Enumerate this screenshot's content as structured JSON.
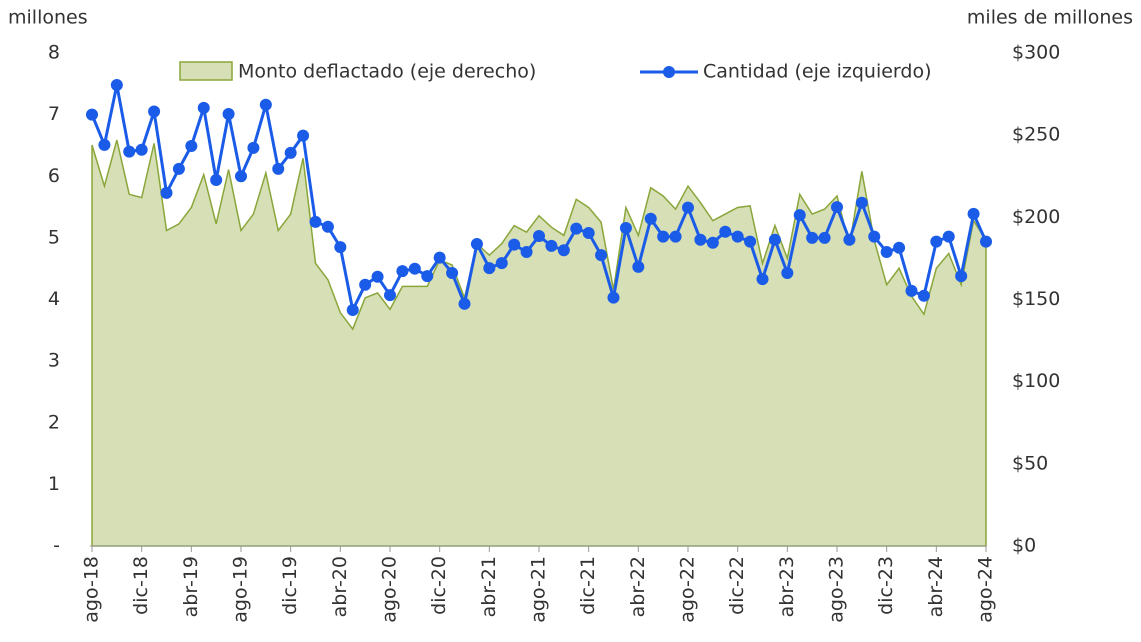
{
  "chart_data": {
    "type": "line",
    "left_axis_label": "millones",
    "right_axis_label": "miles de millones",
    "categories": [
      "ago-18",
      null,
      null,
      null,
      "dic-18",
      null,
      null,
      null,
      "abr-19",
      null,
      null,
      null,
      "ago-19",
      null,
      null,
      null,
      "dic-19",
      null,
      null,
      null,
      "abr-20",
      null,
      null,
      null,
      "ago-20",
      null,
      null,
      null,
      "dic-20",
      null,
      null,
      null,
      "abr-21",
      null,
      null,
      null,
      "ago-21",
      null,
      null,
      null,
      "dic-21",
      null,
      null,
      null,
      "abr-22",
      null,
      null,
      null,
      "ago-22",
      null,
      null,
      null,
      "dic-22",
      null,
      null,
      null,
      "abr-23",
      null,
      null,
      null,
      "ago-23",
      null,
      null,
      null,
      "dic-23",
      null,
      null,
      null,
      "abr-24",
      null,
      null,
      null,
      "ago-24"
    ],
    "series": [
      {
        "name": "Monto deflactado (eje derecho)",
        "type": "area",
        "axis": "y2",
        "color": "#8aa63a",
        "fill": "#d6dfb6",
        "values": [
          244,
          219,
          247,
          214,
          212,
          245,
          192,
          196,
          206,
          226,
          196,
          229,
          192,
          202,
          227,
          192,
          202,
          236,
          172,
          162,
          142,
          132,
          151,
          154,
          144,
          158,
          158,
          158,
          174,
          171,
          151,
          184,
          177,
          184,
          195,
          191,
          201,
          194,
          189,
          211,
          206,
          197,
          156,
          206,
          189,
          218,
          213,
          205,
          219,
          209,
          198,
          202,
          206,
          207,
          172,
          195,
          175,
          214,
          202,
          205,
          213,
          183,
          228,
          186,
          159,
          169,
          152,
          141,
          169,
          178,
          159,
          198,
          186
        ]
      },
      {
        "name": "Cantidad (eje izquierdo)",
        "type": "line",
        "axis": "y",
        "color": "#1a5ce8",
        "values": [
          7.0,
          6.51,
          7.48,
          6.4,
          6.43,
          7.05,
          5.73,
          6.12,
          6.49,
          7.11,
          5.94,
          7.01,
          6.0,
          6.46,
          7.16,
          6.12,
          6.38,
          6.66,
          5.26,
          5.18,
          4.85,
          3.83,
          4.24,
          4.37,
          4.07,
          4.46,
          4.5,
          4.38,
          4.68,
          4.43,
          3.93,
          4.9,
          4.51,
          4.59,
          4.89,
          4.77,
          5.03,
          4.87,
          4.8,
          5.15,
          5.08,
          4.72,
          4.03,
          5.16,
          4.53,
          5.31,
          5.02,
          5.02,
          5.49,
          4.97,
          4.92,
          5.1,
          5.02,
          4.94,
          4.33,
          4.97,
          4.43,
          5.37,
          5.0,
          5.0,
          5.5,
          4.97,
          5.57,
          5.02,
          4.77,
          4.84,
          4.14,
          4.06,
          4.94,
          5.02,
          4.38,
          5.39,
          4.94
        ]
      }
    ],
    "ylim": [
      0,
      8
    ],
    "yticks": [
      {
        "value": 0,
        "label": "-"
      },
      1,
      2,
      3,
      4,
      5,
      6,
      7,
      8
    ],
    "y2lim": [
      0,
      300
    ],
    "y2ticks": [
      {
        "value": 0,
        "label": "$0"
      },
      {
        "value": 50,
        "label": "$50"
      },
      {
        "value": 100,
        "label": "$100"
      },
      {
        "value": 150,
        "label": "$150"
      },
      {
        "value": 200,
        "label": "$200"
      },
      {
        "value": 250,
        "label": "$250"
      },
      {
        "value": 300,
        "label": "$300"
      }
    ],
    "grid": false,
    "legend": "top"
  }
}
